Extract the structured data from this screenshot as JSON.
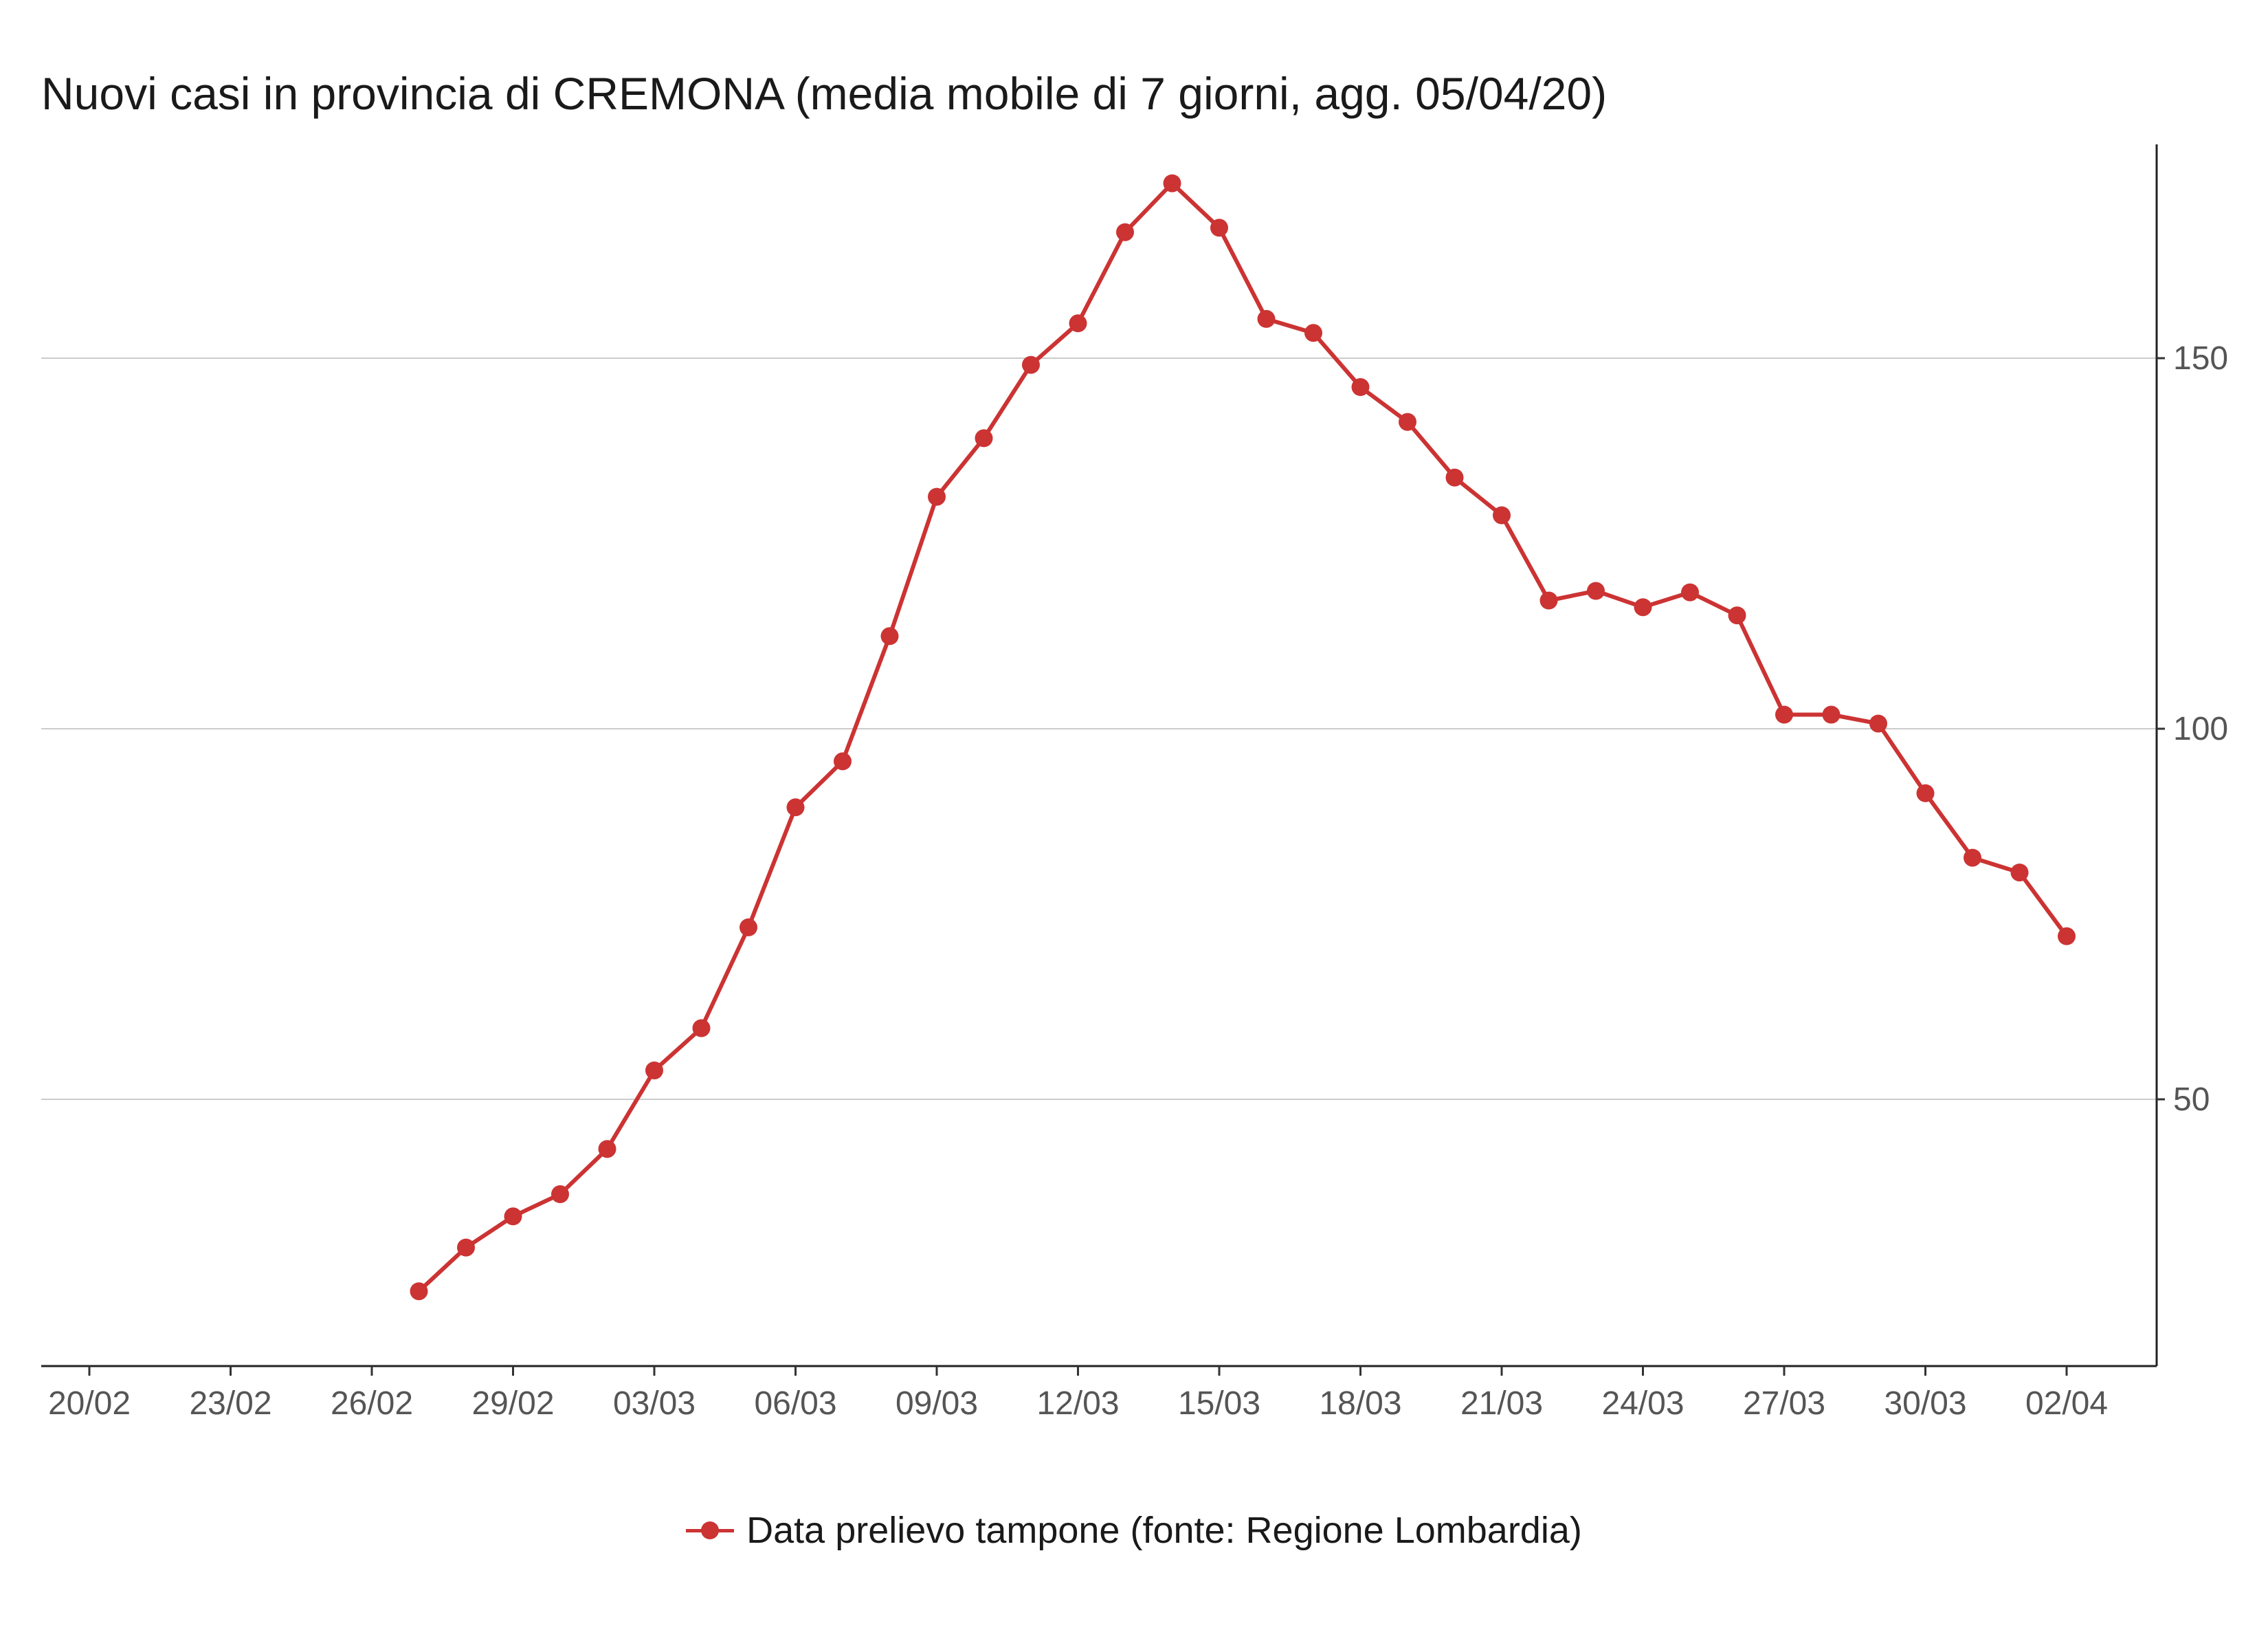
{
  "title": "Nuovi casi in provincia di CREMONA (media mobile di 7 giorni, agg. 05/04/20)",
  "chart_data": {
    "type": "line",
    "title": "Nuovi casi in provincia di CREMONA (media mobile di 7 giorni, agg. 05/04/20)",
    "xlabel": "",
    "ylabel": "",
    "x_tick_labels": [
      "20/02",
      "23/02",
      "26/02",
      "29/02",
      "03/03",
      "06/03",
      "09/03",
      "12/03",
      "15/03",
      "18/03",
      "21/03",
      "24/03",
      "27/03",
      "30/03",
      "02/04"
    ],
    "y_ticks": [
      50,
      100,
      150
    ],
    "ylim": [
      16.7,
      181.4
    ],
    "y_axis_side": "right",
    "grid": "horizontal",
    "legend_position": "bottom",
    "color": "#cc3333",
    "series": [
      {
        "name": "Data prelievo tampone (fonte: Regione Lombardia)",
        "x": [
          "27/02",
          "28/02",
          "29/02",
          "01/03",
          "02/03",
          "03/03",
          "04/03",
          "05/03",
          "06/03",
          "07/03",
          "08/03",
          "09/03",
          "10/03",
          "11/03",
          "12/03",
          "13/03",
          "14/03",
          "15/03",
          "16/03",
          "17/03",
          "18/03",
          "19/03",
          "20/03",
          "21/03",
          "22/03",
          "23/03",
          "24/03",
          "25/03",
          "26/03",
          "27/03",
          "28/03",
          "29/03",
          "30/03",
          "31/03",
          "01/04",
          "02/04"
        ],
        "values": [
          24.1,
          30.0,
          34.2,
          37.2,
          43.3,
          53.9,
          59.6,
          73.2,
          89.4,
          95.6,
          112.5,
          131.3,
          139.2,
          149.1,
          154.7,
          167.0,
          173.6,
          167.6,
          155.3,
          153.4,
          146.1,
          141.4,
          133.9,
          128.8,
          117.3,
          118.6,
          116.4,
          118.4,
          115.3,
          101.9,
          101.9,
          100.7,
          91.3,
          82.6,
          80.6,
          72.0
        ]
      }
    ]
  }
}
